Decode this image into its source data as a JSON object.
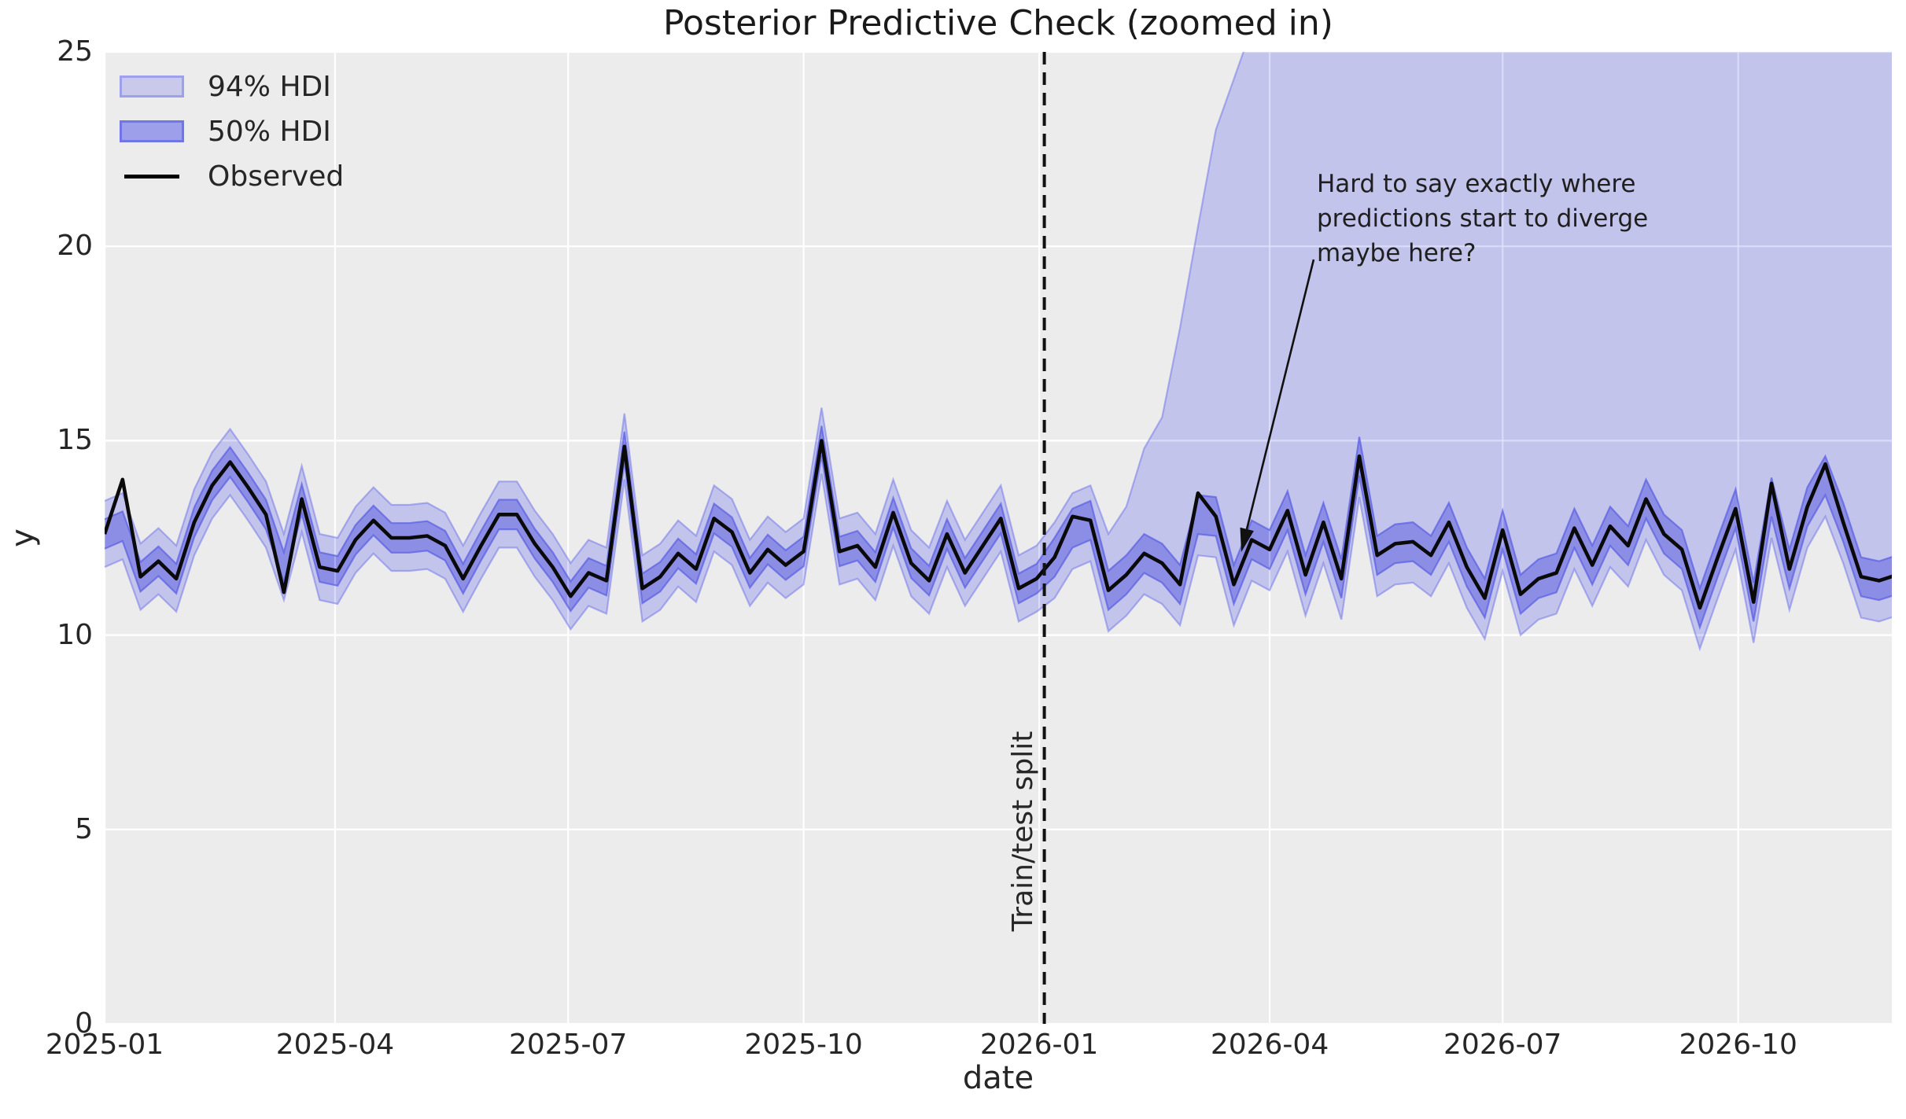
{
  "figure": {
    "title": "Posterior Predictive Check (zoomed in)",
    "xlabel": "date",
    "ylabel": "y"
  },
  "legend": {
    "items": [
      {
        "label": "94% HDI",
        "swatch": "hdi94-swatch"
      },
      {
        "label": "50% HDI",
        "swatch": "hdi50-swatch"
      },
      {
        "label": "Observed",
        "swatch": "observed-line-swatch"
      }
    ]
  },
  "split": {
    "label": "Train/test split",
    "date": "2026-01-03"
  },
  "annotation": {
    "text": "Hard to say exactly where\npredictions start to diverge\nmaybe here?",
    "arrow_points_to": {
      "date": "2026-03-18",
      "y": 12.2
    }
  },
  "colors": {
    "plot_background": "#ececec",
    "grid": "#ffffff",
    "hdi_base": "#6c6fe9",
    "hdi94_fill": "rgba(108,111,233,0.32)",
    "hdi50_fill": "rgba(95,98,225,0.55)",
    "hdi94_edge": "rgba(108,111,233,0.50)",
    "hdi50_edge": "rgba(90,94,226,0.72)",
    "observed_line": "#0a0a0a",
    "split_line": "#111111",
    "text": "#262626"
  },
  "chart_data": {
    "type": "line",
    "title": "Posterior Predictive Check (zoomed in)",
    "xlabel": "date",
    "ylabel": "y",
    "ylim": [
      0,
      25
    ],
    "y_ticks": [
      {
        "value": 0,
        "label": "0"
      },
      {
        "value": 5,
        "label": "5"
      },
      {
        "value": 10,
        "label": "10"
      },
      {
        "value": 15,
        "label": "15"
      },
      {
        "value": 20,
        "label": "20"
      },
      {
        "value": 25,
        "label": "25"
      }
    ],
    "x_ticks": [
      {
        "day": 0,
        "label": "2025-01"
      },
      {
        "day": 90,
        "label": "2025-04"
      },
      {
        "day": 181,
        "label": "2025-07"
      },
      {
        "day": 273,
        "label": "2025-10"
      },
      {
        "day": 365,
        "label": "2026-01"
      },
      {
        "day": 455,
        "label": "2026-04"
      },
      {
        "day": 546,
        "label": "2026-07"
      },
      {
        "day": 638,
        "label": "2026-10"
      }
    ],
    "x_start_date": "2025-01-01",
    "x_step_days": 7,
    "x_total_days": 698,
    "split_day": 367,
    "grid": true,
    "legend_position": "upper left",
    "series": [
      {
        "name": "Observed",
        "values": [
          12.6,
          14.0,
          11.5,
          11.9,
          11.45,
          12.9,
          13.85,
          14.45,
          13.8,
          13.1,
          11.1,
          13.5,
          11.75,
          11.65,
          12.45,
          12.95,
          12.5,
          12.5,
          12.55,
          12.3,
          11.45,
          12.3,
          13.1,
          13.1,
          12.35,
          11.75,
          11.0,
          11.6,
          11.4,
          14.85,
          11.2,
          11.5,
          12.1,
          11.7,
          13.0,
          12.65,
          11.6,
          12.2,
          11.8,
          12.15,
          15.0,
          12.15,
          12.3,
          11.75,
          13.15,
          11.85,
          11.4,
          12.6,
          11.6,
          12.3,
          13.0,
          11.2,
          11.45,
          12.0,
          13.05,
          12.95,
          11.15,
          11.55,
          12.1,
          11.85,
          11.3,
          13.65,
          13.05,
          11.3,
          12.45,
          12.2,
          13.2,
          11.55,
          12.9,
          11.45,
          14.6,
          12.05,
          12.35,
          12.4,
          12.05,
          12.9,
          11.75,
          10.95,
          12.7,
          11.05,
          11.45,
          11.6,
          12.75,
          11.8,
          12.8,
          12.3,
          13.5,
          12.6,
          12.2,
          10.7,
          12.0,
          13.25,
          10.85,
          13.9,
          11.7,
          13.3,
          14.4,
          12.9,
          11.5,
          11.4,
          11.55
        ]
      }
    ],
    "hdi_bands": {
      "note": "bands hug the predictive center; 94% upper bound explodes off-chart after the train/test split",
      "center_overrides": {
        "1": 12.8,
        "10": 11.75,
        "54": 12.75,
        "61": 13.1,
        "93": 13.55,
        "96": 14.1
      },
      "train_idx_end": 52,
      "in_sample": {
        "hdi50_half": 0.38,
        "hdi94_half": 0.85
      },
      "out_sample": {
        "hdi50_half": 0.5,
        "hdi94_lower_offset": 1.05,
        "hdi94_upper_offset": 0.9
      },
      "hdi94_upper_ramp": {
        "56": 12.6,
        "57": 13.3,
        "58": 14.8,
        "59": 15.6,
        "60": 17.9,
        "61": 20.5,
        "62": 23.0,
        "63": 24.3,
        "64": 25.6,
        "65": 26.5
      },
      "hdi94_upper_offchart": 28
    }
  }
}
